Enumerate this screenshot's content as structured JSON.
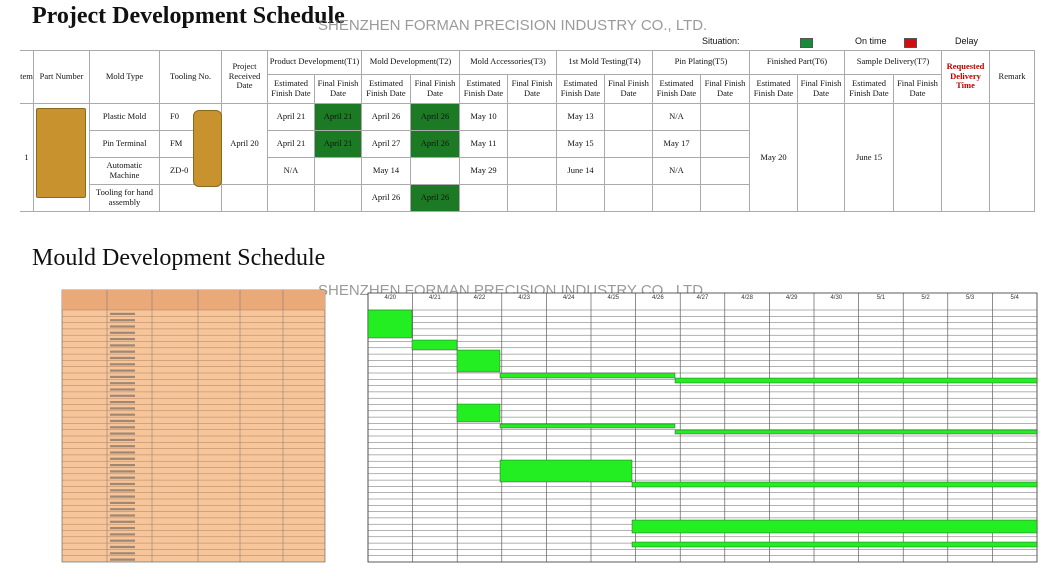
{
  "header": {
    "title": "Project Development Schedule",
    "watermark": "SHENZHEN FORMAN PRECISION INDUSTRY CO., LTD.",
    "situation": "Situation:",
    "on_time": "On time",
    "delay": "Delay"
  },
  "table": {
    "single_headers": [
      "tem",
      "Part Number",
      "Mold Type",
      "Tooling No.",
      "Project Received Date"
    ],
    "groups": [
      {
        "name": "Product Development(T1)",
        "sub": [
          "Estimated Finish Date",
          "Final Finish Date"
        ]
      },
      {
        "name": "Mold Development(T2)",
        "sub": [
          "Estimated Finish Date",
          "Final Finish Date"
        ]
      },
      {
        "name": "Mold  Accessories(T3)",
        "sub": [
          "Estimated Finish Date",
          "Final Finish Date"
        ]
      },
      {
        "name": "1st Mold Testing(T4)",
        "sub": [
          "Estimated Finish Date",
          "Final Finish Date"
        ]
      },
      {
        "name": "Pin Plating(T5)",
        "sub": [
          "Estimated Finish Date",
          "Final Finish Date"
        ]
      },
      {
        "name": "Finished Part(T6)",
        "sub": [
          "Estimated Finish Date",
          "Final Finish Date"
        ]
      },
      {
        "name": "Sample Delivery(T7)",
        "sub": [
          "Estimated Finish Date",
          "Final Finish Date"
        ]
      }
    ],
    "requested": "Requested Delivery Time",
    "remark": "Remark",
    "item": "1",
    "received": "April 20",
    "finished": "May 20",
    "sample": "June 15",
    "rows": [
      {
        "mold_type": "Plastic Mold",
        "tooling_no": "F0",
        "dates": [
          "April 21",
          "April 21",
          "April 26",
          "April 26",
          "May 10",
          null,
          "May 13",
          null,
          "N/A",
          null
        ],
        "on_time": [
          1,
          3
        ]
      },
      {
        "mold_type": "Pin Terminal",
        "tooling_no": "FM",
        "dates": [
          "April 21",
          "April 21",
          "April 27",
          "April 26",
          "May 11",
          null,
          "May 15",
          null,
          "May 17",
          null
        ],
        "on_time": [
          1,
          3
        ]
      },
      {
        "mold_type": "Automatic Machine",
        "tooling_no": "ZD-0",
        "dates": [
          "N/A",
          null,
          "May 14",
          null,
          "May 29",
          null,
          "June 14",
          null,
          "N/A",
          null
        ],
        "on_time": []
      },
      {
        "mold_type": "Tooling for hand assembly",
        "tooling_no": null,
        "dates": [
          null,
          null,
          "April 26",
          "April 26",
          null,
          null,
          null,
          null,
          null,
          null
        ],
        "on_time": [
          3
        ]
      }
    ]
  },
  "gantt": {
    "title": "Mould Development Schedule",
    "watermark": "SHENZHEN FORMAN PRECISION INDUSTRY CO., LTD.",
    "dates": [
      "4/20",
      "4/21",
      "4/22",
      "4/23",
      "4/24",
      "4/25",
      "4/26",
      "4/27",
      "4/28",
      "4/29",
      "4/30",
      "5/1",
      "5/2",
      "5/3",
      "5/4"
    ]
  }
}
